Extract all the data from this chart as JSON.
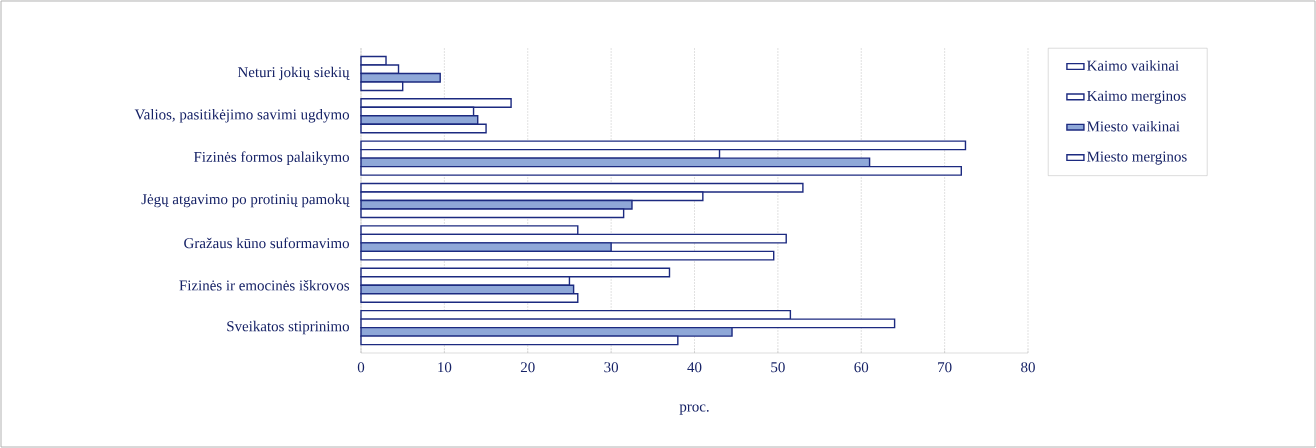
{
  "chart_data": {
    "type": "bar",
    "orientation": "horizontal",
    "xlabel": "proc.",
    "categories": [
      "Neturi jokių siekių",
      "Valios, pasitikėjimo savimi ugdymo",
      "Fizinės formos palaikymo",
      "Jėgų  atgavimo po protinių pamokų",
      "Gražaus kūno suformavimo",
      "Fizinės ir emocinės iškrovos",
      "Sveikatos stiprinimo"
    ],
    "series": [
      {
        "name": "Kaimo vaikinai",
        "color": "#ffffff",
        "values": [
          3,
          18,
          72.5,
          53,
          26,
          37,
          51.5
        ]
      },
      {
        "name": "Kaimo merginos",
        "color": "#ffffff",
        "values": [
          4.5,
          13.5,
          43,
          41,
          51,
          25,
          64
        ]
      },
      {
        "name": "Miesto vaikinai",
        "color": "#8fa8d8",
        "values": [
          9.5,
          14,
          61,
          32.5,
          30,
          25.5,
          44.5
        ]
      },
      {
        "name": "Miesto merginos",
        "color": "#ffffff",
        "values": [
          5,
          15,
          72,
          31.5,
          49.5,
          26,
          38
        ]
      }
    ],
    "xlim": [
      0,
      80
    ],
    "xticks": [
      0,
      10,
      20,
      30,
      40,
      50,
      60,
      70,
      80
    ],
    "grid": "x",
    "legend": "right"
  }
}
